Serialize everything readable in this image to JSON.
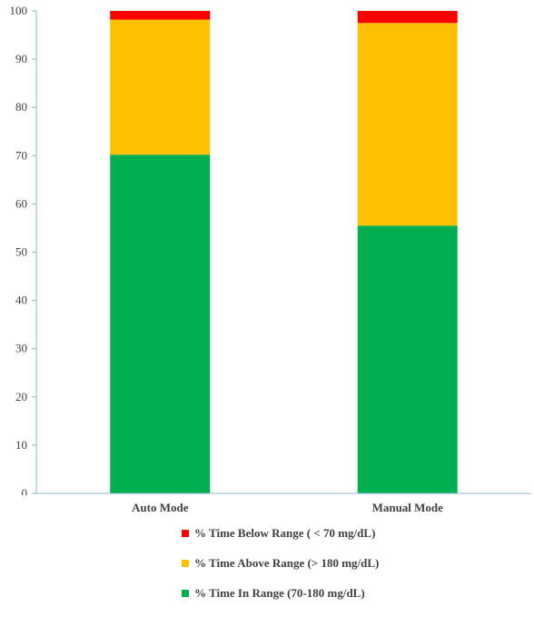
{
  "chart_data": {
    "type": "bar",
    "stacked": true,
    "categories": [
      "Auto Mode",
      "Manual Mode"
    ],
    "series": [
      {
        "name": "% Time In Range (70-180 mg/dL)",
        "color": "#00b050",
        "values": [
          70.2,
          55.5
        ]
      },
      {
        "name": "% Time Above Range (> 180 mg/dL)",
        "color": "#ffc000",
        "values": [
          28.0,
          42.0
        ]
      },
      {
        "name": "% Time Below Range ( < 70 mg/dL)",
        "color": "#ff0000",
        "values": [
          1.8,
          2.5
        ]
      }
    ],
    "ylim": [
      0,
      100
    ],
    "yticks": [
      "0",
      "10",
      "20",
      "30",
      "40",
      "50",
      "60",
      "70",
      "80",
      "90",
      "100"
    ],
    "title": "",
    "xlabel": "",
    "ylabel": "",
    "grid": false,
    "legend_position": "bottom"
  },
  "legend": {
    "items": [
      {
        "label": "% Time Below Range ( < 70 mg/dL)",
        "color": "#ff0000"
      },
      {
        "label": "% Time Above Range (> 180 mg/dL)",
        "color": "#ffc000"
      },
      {
        "label": "% Time In Range (70-180 mg/dL)",
        "color": "#00b050"
      }
    ]
  }
}
